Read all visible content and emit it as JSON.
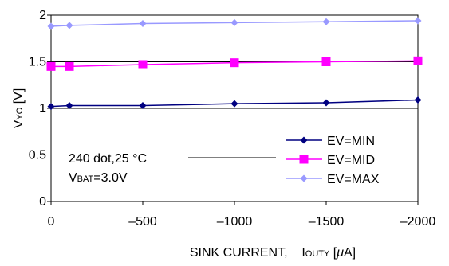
{
  "chart_data": {
    "type": "line",
    "x": [
      0,
      -100,
      -500,
      -1000,
      -1500,
      -2000
    ],
    "xlim": [
      0,
      -2000
    ],
    "ylim": [
      0,
      2
    ],
    "xticks": [
      0,
      -500,
      -1000,
      -1500,
      -2000
    ],
    "xtick_labels": [
      "0",
      "–500",
      "–1000",
      "–1500",
      "–2000"
    ],
    "yticks": [
      0,
      0.5,
      1,
      1.5,
      2
    ],
    "ytick_labels": [
      "0",
      "0.5",
      "1",
      "1.5",
      "2"
    ],
    "grid": "horizontal lines at 1, 1.5, 2",
    "xlabel": {
      "main": "SINK CURRENT,",
      "sym": "I",
      "sub": "OUTY",
      "unit_open": " [",
      "unit_mu": "μ",
      "unit_close": "A]"
    },
    "ylabel": {
      "sym": "V",
      "sub": "YO",
      "unit": " [V]"
    },
    "annotation": {
      "line1": "240 dot,25 °C",
      "line2_sym": "V",
      "line2_sub": "BAT",
      "line2_val": "=3.0V"
    },
    "legend_position": "lower-right",
    "series": [
      {
        "name": "EV=MIN",
        "values": [
          1.02,
          1.03,
          1.03,
          1.05,
          1.06,
          1.09
        ],
        "color": "#000080",
        "marker": "diamond"
      },
      {
        "name": "EV=MID",
        "values": [
          1.45,
          1.45,
          1.47,
          1.49,
          1.5,
          1.51
        ],
        "color": "#FF00FF",
        "marker": "square"
      },
      {
        "name": "EV=MAX",
        "values": [
          1.88,
          1.89,
          1.91,
          1.92,
          1.93,
          1.94
        ],
        "color": "#9999FF",
        "marker": "diamond"
      }
    ]
  }
}
